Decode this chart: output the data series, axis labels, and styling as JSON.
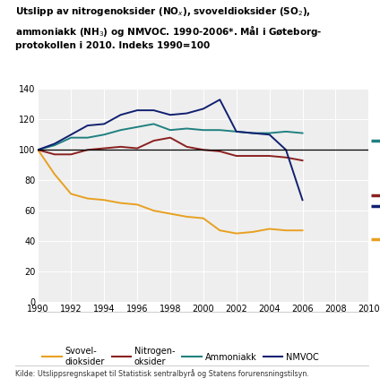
{
  "source": "Kilde: Utslippsregnskapet til Statistisk sentralbyrå og Statens forurensningstilsyn.",
  "years_data": [
    1990,
    1991,
    1992,
    1993,
    1994,
    1995,
    1996,
    1997,
    1998,
    1999,
    2000,
    2001,
    2002,
    2003,
    2004,
    2005,
    2006
  ],
  "SO2": [
    100,
    84,
    71,
    68,
    67,
    65,
    64,
    60,
    58,
    56,
    55,
    47,
    45,
    46,
    48,
    47,
    47
  ],
  "NOX": [
    100,
    97,
    97,
    100,
    101,
    102,
    101,
    106,
    108,
    102,
    100,
    99,
    96,
    96,
    96,
    95,
    93
  ],
  "NH3": [
    100,
    103,
    108,
    108,
    110,
    113,
    115,
    117,
    113,
    114,
    113,
    113,
    112,
    111,
    111,
    112,
    111
  ],
  "NMVOC": [
    100,
    104,
    110,
    116,
    117,
    123,
    126,
    126,
    123,
    124,
    127,
    133,
    112,
    111,
    110,
    100,
    67
  ],
  "target_SO2_2010": 41,
  "target_NOX_2010": 70,
  "target_NH3_2010": 106,
  "target_NMVOC_2010": 63,
  "color_SO2": "#e8a020",
  "color_NOX": "#8b2020",
  "color_NH3": "#208080",
  "color_NMVOC": "#102070",
  "xlim": [
    1990,
    2010
  ],
  "ylim": [
    0,
    140
  ],
  "yticks": [
    0,
    20,
    40,
    60,
    80,
    100,
    120,
    140
  ],
  "xticks": [
    1990,
    1992,
    1994,
    1996,
    1998,
    2000,
    2002,
    2004,
    2006,
    2008,
    2010
  ]
}
